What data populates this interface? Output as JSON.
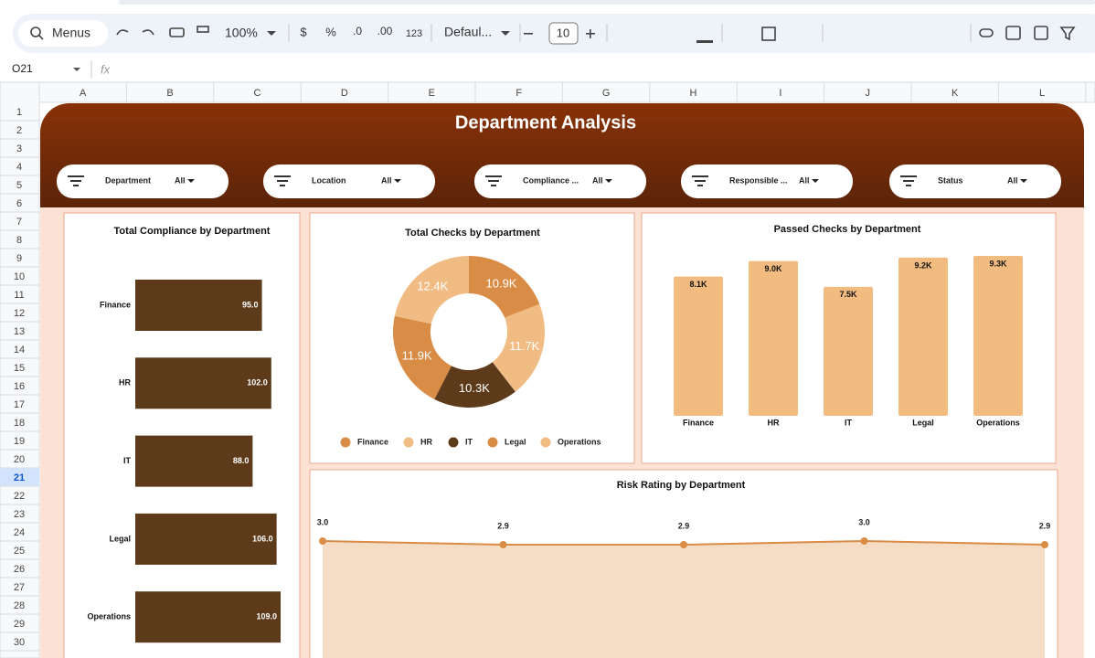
{
  "toolbar": {
    "search": "Menus",
    "zoom": "100%",
    "currency": "$",
    "percent": "%",
    "decrease_decimal": ".0",
    "increase_decimal": ".00",
    "number_format": "123",
    "font": "Defaul...",
    "font_size": "10"
  },
  "formula_bar": {
    "cell": "O21",
    "fx": "fx"
  },
  "columns": [
    "A",
    "B",
    "C",
    "D",
    "E",
    "F",
    "G",
    "H",
    "I",
    "J",
    "K",
    "L"
  ],
  "rows": [
    1,
    2,
    3,
    4,
    5,
    6,
    7,
    8,
    9,
    10,
    11,
    12,
    13,
    14,
    15,
    16,
    17,
    18,
    19,
    20,
    21,
    22,
    23,
    24,
    25,
    26,
    27,
    28,
    29,
    30
  ],
  "header": {
    "title": "Department Analysis"
  },
  "filters": [
    {
      "label": "Department",
      "value": "All"
    },
    {
      "label": "Location",
      "value": "All"
    },
    {
      "label": "Compliance ...",
      "value": "All"
    },
    {
      "label": "Responsible ...",
      "value": "All"
    },
    {
      "label": "Status",
      "value": "All"
    }
  ],
  "chart_data": [
    {
      "type": "hbar",
      "title": "Total Compliance by Department",
      "categories": [
        "Finance",
        "HR",
        "IT",
        "Legal",
        "Operations"
      ],
      "values": [
        95,
        102,
        88,
        106,
        109
      ],
      "value_labels": [
        "95.0",
        "102.0",
        "88.0",
        "106.0",
        "109.0"
      ],
      "color": "#5c3a1a"
    },
    {
      "type": "donut",
      "title": "Total Checks by Department",
      "categories": [
        "Finance",
        "HR",
        "IT",
        "Legal",
        "Operations"
      ],
      "values": [
        10900,
        11700,
        10300,
        11900,
        12400
      ],
      "value_labels": [
        "10.9K",
        "11.7K",
        "10.3K",
        "11.9K",
        "12.4K"
      ],
      "colors": [
        "#d98c45",
        "#f0bc84",
        "#5c3a1a",
        "#d98c45",
        "#f0bc84"
      ]
    },
    {
      "type": "bar",
      "title": "Passed Checks  by Department",
      "categories": [
        "Finance",
        "HR",
        "IT",
        "Legal",
        "Operations"
      ],
      "values": [
        8100,
        9000,
        7500,
        9200,
        9300
      ],
      "value_labels": [
        "8.1K",
        "9.0K",
        "7.5K",
        "9.2K",
        "9.3K"
      ],
      "color": "#f2bb80"
    },
    {
      "type": "area",
      "title": "Risk Rating  by Department",
      "values": [
        3.0,
        2.9,
        2.9,
        3.0,
        2.9
      ],
      "value_labels": [
        "3.0",
        "2.9",
        "2.9",
        "3.0",
        "2.9"
      ],
      "color": "#d98c45",
      "fill": "#f5dcc4"
    }
  ]
}
